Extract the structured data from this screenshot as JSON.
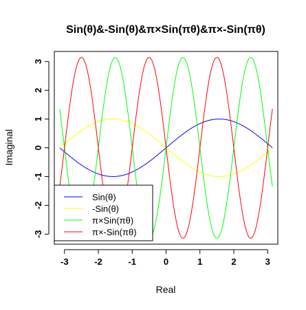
{
  "chart_data": {
    "type": "line",
    "title": "Sin(θ)&-Sin(θ)&π×Sin(πθ)&π×-Sin(πθ)",
    "xlabel": "Real",
    "ylabel": "Imaginal",
    "xlim": [
      -3.3,
      3.3
    ],
    "ylim": [
      -3.35,
      3.35
    ],
    "x_ticks": [
      "-3",
      "-2",
      "-1",
      "0",
      "1",
      "2",
      "3"
    ],
    "y_ticks": [
      "-3",
      "-2",
      "-1",
      "0",
      "1",
      "2",
      "3"
    ],
    "x_range": [
      -3.14159,
      3.14159
    ],
    "series": [
      {
        "name": "Sin(θ)",
        "color": "#0000ff",
        "expression": "sin(θ)",
        "x_start": -3.14159,
        "x_end": 3.14159,
        "y_start": 0,
        "y_min": -1,
        "y_max": 1
      },
      {
        "name": "-Sin(θ)",
        "color": "#ffff00",
        "expression": "-sin(θ)",
        "x_start": -3.14159,
        "x_end": 3.14159,
        "y_start": 0,
        "y_min": -1,
        "y_max": 1
      },
      {
        "name": "π×Sin(πθ)",
        "color": "#00ff00",
        "expression": "π·sin(πθ)",
        "x_start": -3.14159,
        "x_end": 3.14159,
        "y_start": 1.36,
        "y_min": -3.14,
        "y_max": 3.14
      },
      {
        "name": "π×-Sin(πθ)",
        "color": "#ff0000",
        "expression": "-π·sin(πθ)",
        "x_start": -3.14159,
        "x_end": 3.14159,
        "y_start": -1.36,
        "y_min": -3.14,
        "y_max": 3.14
      }
    ],
    "legend_position": "bottom-left",
    "grid": false
  }
}
